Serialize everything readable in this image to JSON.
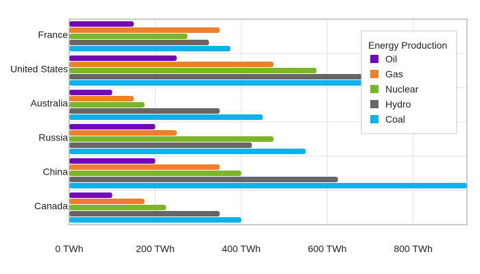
{
  "chart_data": {
    "type": "bar",
    "orientation": "horizontal",
    "categories": [
      "France",
      "United States",
      "Australia",
      "Russia",
      "China",
      "Canada"
    ],
    "series": [
      {
        "name": "Oil",
        "color": "#7209b7",
        "values": [
          150,
          250,
          100,
          200,
          200,
          100
        ]
      },
      {
        "name": "Gas",
        "color": "#f07f2d",
        "values": [
          350,
          475,
          150,
          250,
          350,
          175
        ]
      },
      {
        "name": "Nuclear",
        "color": "#79b62a",
        "values": [
          275,
          575,
          175,
          475,
          400,
          225
        ]
      },
      {
        "name": "Hydro",
        "color": "#666666",
        "values": [
          325,
          800,
          350,
          425,
          625,
          350
        ]
      },
      {
        "name": "Coal",
        "color": "#10b0e8",
        "values": [
          375,
          800,
          450,
          550,
          925,
          400
        ]
      }
    ],
    "x_ticks": [
      "0 TWh",
      "200 TWh",
      "400 TWh",
      "600 TWh",
      "800 TWh"
    ],
    "x_tick_values": [
      0,
      200,
      400,
      600,
      800
    ],
    "xlim": [
      0,
      925
    ],
    "legend": {
      "title": "Energy Production",
      "position": "top-right"
    },
    "grid": true
  }
}
